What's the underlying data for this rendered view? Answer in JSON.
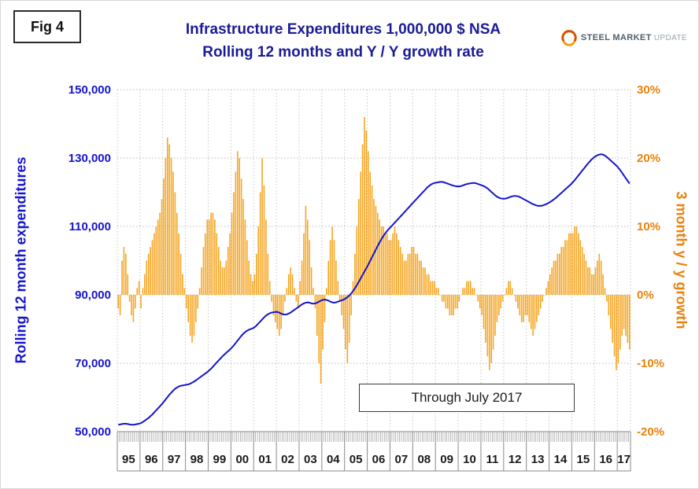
{
  "fig_label": "Fig 4",
  "title": {
    "line1": "Infrastructure Expenditures 1,000,000 $ NSA",
    "line2": "Rolling 12 months and Y / Y growth rate"
  },
  "logo": {
    "word1": "STEEL",
    "word2": "MARKET",
    "word3": "UPDATE"
  },
  "chart_data": {
    "type": "combo",
    "title": "Infrastructure Expenditures 1,000,000 $ NSA Rolling 12 months and Y / Y growth rate",
    "annotation": "Through July 2017",
    "x_unit": "month",
    "x_start": "1995-01",
    "x_end": "2017-07",
    "x_year_labels": [
      "95",
      "96",
      "97",
      "98",
      "99",
      "00",
      "01",
      "02",
      "03",
      "04",
      "05",
      "06",
      "07",
      "08",
      "09",
      "10",
      "11",
      "12",
      "13",
      "14",
      "15",
      "16",
      "17"
    ],
    "grid": true,
    "left_axis": {
      "label": "Rolling 12 month expenditures",
      "color": "#1414cc",
      "min": 50000,
      "max": 150000,
      "tick_values": [
        150000,
        130000,
        110000,
        90000,
        70000,
        50000
      ],
      "ticks": [
        "150,000",
        "130,000",
        "110,000",
        "90,000",
        "70,000",
        "50,000"
      ]
    },
    "right_axis": {
      "label": "3 month y / y growth",
      "color": "#e8820c",
      "min": -20,
      "max": 30,
      "tick_values": [
        30,
        20,
        10,
        0,
        -10,
        -20
      ],
      "ticks": [
        "30%",
        "20%",
        "10%",
        "0%",
        "-10%",
        "-20%"
      ]
    },
    "series": [
      {
        "name": "Rolling 12 month expenditures",
        "type": "line",
        "axis": "left",
        "color": "#1414cc",
        "values": [
          52000,
          52100,
          52200,
          52300,
          52300,
          52200,
          52100,
          52000,
          52000,
          52100,
          52200,
          52300,
          52500,
          52800,
          53200,
          53600,
          54000,
          54500,
          55000,
          55600,
          56200,
          56800,
          57400,
          58000,
          58700,
          59400,
          60100,
          60800,
          61400,
          62000,
          62500,
          62900,
          63200,
          63400,
          63500,
          63600,
          63700,
          63800,
          64000,
          64300,
          64600,
          65000,
          65400,
          65800,
          66200,
          66600,
          67000,
          67400,
          67900,
          68400,
          69000,
          69600,
          70200,
          70800,
          71400,
          72000,
          72500,
          73000,
          73500,
          74000,
          74600,
          75200,
          75900,
          76600,
          77300,
          78000,
          78600,
          79100,
          79500,
          79800,
          80000,
          80200,
          80500,
          81000,
          81600,
          82200,
          82800,
          83400,
          83900,
          84300,
          84600,
          84800,
          84900,
          85000,
          85000,
          84800,
          84500,
          84300,
          84200,
          84300,
          84500,
          84800,
          85200,
          85600,
          86000,
          86400,
          86800,
          87200,
          87500,
          87700,
          87800,
          87700,
          87500,
          87400,
          87500,
          87700,
          88000,
          88300,
          88500,
          88600,
          88500,
          88300,
          88000,
          87800,
          87700,
          87800,
          88000,
          88200,
          88400,
          88600,
          88900,
          89300,
          89800,
          90400,
          91100,
          91900,
          92800,
          93800,
          94800,
          95800,
          96800,
          97800,
          98800,
          99900,
          101000,
          102100,
          103200,
          104300,
          105300,
          106300,
          107200,
          108000,
          108700,
          109300,
          109900,
          110500,
          111100,
          111700,
          112300,
          112900,
          113500,
          114100,
          114700,
          115300,
          115900,
          116500,
          117100,
          117700,
          118300,
          118900,
          119500,
          120100,
          120700,
          121300,
          121800,
          122200,
          122500,
          122700,
          122800,
          122900,
          123000,
          123000,
          122900,
          122700,
          122500,
          122300,
          122100,
          121900,
          121800,
          121700,
          121700,
          121800,
          122000,
          122200,
          122400,
          122500,
          122600,
          122700,
          122700,
          122600,
          122400,
          122200,
          122000,
          121800,
          121500,
          121100,
          120600,
          120100,
          119600,
          119100,
          118700,
          118400,
          118200,
          118100,
          118100,
          118200,
          118400,
          118600,
          118800,
          118900,
          118900,
          118800,
          118600,
          118300,
          118000,
          117700,
          117400,
          117100,
          116800,
          116500,
          116300,
          116100,
          116000,
          116000,
          116100,
          116300,
          116500,
          116800,
          117100,
          117500,
          117900,
          118300,
          118800,
          119300,
          119800,
          120300,
          120800,
          121300,
          121800,
          122300,
          122900,
          123500,
          124200,
          124900,
          125600,
          126300,
          127000,
          127700,
          128400,
          129000,
          129600,
          130100,
          130500,
          130800,
          131000,
          131100,
          131000,
          130700,
          130300,
          129800,
          129300,
          128800,
          128300,
          127800,
          127200,
          126500,
          125700,
          124900,
          124100,
          123300,
          122500
        ]
      },
      {
        "name": "3 month y / y growth",
        "type": "bar",
        "axis": "right",
        "color": "#f5a623",
        "values": [
          -2,
          -3,
          5,
          7,
          6,
          3,
          -1,
          -3,
          -4,
          -2,
          1,
          2,
          -2,
          1,
          3,
          5,
          6,
          7,
          8,
          9,
          10,
          11,
          12,
          14,
          17,
          20,
          23,
          22,
          20,
          18,
          15,
          12,
          9,
          6,
          3,
          1,
          -2,
          -4,
          -6,
          -7,
          -6,
          -4,
          -2,
          1,
          4,
          7,
          9,
          11,
          11,
          12,
          12,
          11,
          9,
          7,
          5,
          4,
          4,
          5,
          7,
          9,
          12,
          15,
          18,
          21,
          20,
          17,
          14,
          11,
          8,
          5,
          3,
          2,
          3,
          6,
          10,
          15,
          20,
          16,
          11,
          6,
          2,
          -1,
          -3,
          -4,
          -5,
          -6,
          -5,
          -3,
          -1,
          1,
          3,
          4,
          3,
          1,
          -1,
          -2,
          2,
          5,
          9,
          13,
          11,
          8,
          4,
          1,
          -2,
          -6,
          -10,
          -13,
          -8,
          -4,
          1,
          5,
          8,
          10,
          8,
          5,
          2,
          -1,
          -3,
          -5,
          -8,
          -10,
          -7,
          -3,
          2,
          6,
          10,
          14,
          18,
          22,
          26,
          24,
          21,
          18,
          16,
          14,
          13,
          12,
          11,
          10,
          10,
          9,
          9,
          8,
          8,
          9,
          10,
          9,
          8,
          7,
          6,
          5,
          5,
          6,
          6,
          7,
          7,
          6,
          6,
          5,
          5,
          4,
          4,
          3,
          3,
          2,
          2,
          2,
          1,
          1,
          0,
          -1,
          -1,
          -2,
          -2,
          -3,
          -3,
          -3,
          -2,
          -2,
          -1,
          0,
          1,
          1,
          2,
          2,
          2,
          1,
          1,
          0,
          -1,
          -2,
          -3,
          -5,
          -7,
          -9,
          -11,
          -10,
          -8,
          -6,
          -4,
          -3,
          -2,
          -1,
          0,
          1,
          2,
          2,
          1,
          0,
          -1,
          -2,
          -3,
          -4,
          -4,
          -3,
          -3,
          -4,
          -5,
          -6,
          -5,
          -4,
          -3,
          -2,
          -1,
          0,
          1,
          2,
          3,
          4,
          5,
          5,
          6,
          6,
          7,
          7,
          8,
          8,
          9,
          9,
          9,
          10,
          10,
          9,
          8,
          7,
          6,
          5,
          4,
          4,
          3,
          3,
          4,
          5,
          6,
          5,
          3,
          1,
          -1,
          -3,
          -5,
          -7,
          -9,
          -11,
          -10,
          -8,
          -6,
          -5,
          -6,
          -7,
          -8
        ]
      }
    ]
  }
}
